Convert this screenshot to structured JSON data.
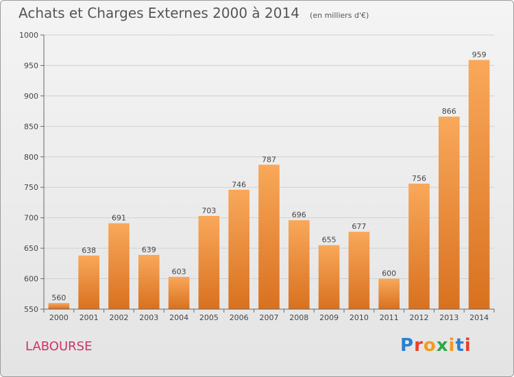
{
  "title": "Achats et Charges Externes 2000 à 2014",
  "subtitle": "(en milliers d'€)",
  "town": "LABOURSE",
  "logo": {
    "text": "Proxiti",
    "letter_colors": [
      "#2a7fd0",
      "#e8402c",
      "#f29a1e",
      "#2aa84a",
      "#f29a1e",
      "#2a7fd0",
      "#e8402c"
    ]
  },
  "colors": {
    "bar_light": "#f9a85a",
    "bar_dark": "#d8711f",
    "town": "#cc3366"
  },
  "chart_data": {
    "type": "bar",
    "title": "Achats et Charges Externes 2000 à 2014",
    "subtitle": "(en milliers d'€)",
    "categories": [
      "2000",
      "2001",
      "2002",
      "2003",
      "2004",
      "2005",
      "2006",
      "2007",
      "2008",
      "2009",
      "2010",
      "2011",
      "2012",
      "2013",
      "2014"
    ],
    "values": [
      560,
      638,
      691,
      639,
      603,
      703,
      746,
      787,
      696,
      655,
      677,
      600,
      756,
      866,
      959
    ],
    "ylim": [
      550,
      1000
    ],
    "yticks": [
      550,
      600,
      650,
      700,
      750,
      800,
      850,
      900,
      950,
      1000
    ],
    "grid": true,
    "xlabel": "",
    "ylabel": ""
  }
}
